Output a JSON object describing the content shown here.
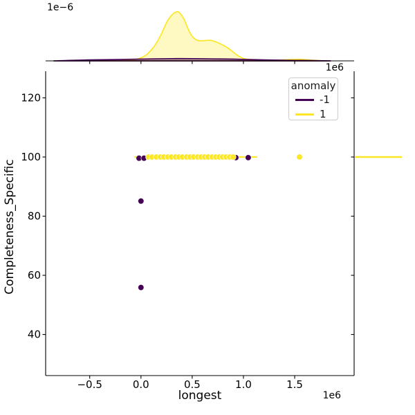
{
  "figure": {
    "top_marginal": {
      "y_offset_label": "1e−6",
      "x_offset_label": "1e6"
    },
    "legend": {
      "title": "anomaly",
      "entries": [
        {
          "label": "-1",
          "color": "#440154"
        },
        {
          "label": "1",
          "color": "#FDE725"
        }
      ]
    },
    "main": {
      "xlabel": "longest",
      "ylabel": "Completeness_Specific",
      "x_offset_label": "1e6"
    }
  },
  "chart_data": {
    "type": "scatter",
    "title": "",
    "xlabel": "longest",
    "ylabel": "Completeness_Specific",
    "x_unit_multiplier": 1000000,
    "x_offset_label": "1e6",
    "top_density_offset_label": "1e−6",
    "xlim": [
      -0.93,
      2.08
    ],
    "ylim": [
      26.1,
      129.0
    ],
    "grid": false,
    "legend_title": "anomaly",
    "legend_position": "upper right",
    "x_ticks": [
      {
        "v": -0.5,
        "label": "−0.5"
      },
      {
        "v": 0.0,
        "label": "0.0"
      },
      {
        "v": 0.5,
        "label": "0.5"
      },
      {
        "v": 1.0,
        "label": "1.0"
      },
      {
        "v": 1.5,
        "label": "1.5"
      }
    ],
    "y_ticks": [
      {
        "v": 40,
        "label": "40"
      },
      {
        "v": 60,
        "label": "60"
      },
      {
        "v": 80,
        "label": "80"
      },
      {
        "v": 100,
        "label": "100"
      },
      {
        "v": 120,
        "label": "120"
      }
    ],
    "series": [
      {
        "name": "-1",
        "color": "#440154",
        "points": [
          [
            -0.019,
            99.6
          ],
          [
            0.03,
            99.6
          ],
          [
            0.5,
            100
          ],
          [
            0.605,
            100
          ],
          [
            0.815,
            100
          ],
          [
            0.885,
            100
          ],
          [
            0.926,
            99.8
          ],
          [
            1.047,
            99.8
          ],
          [
            0.0,
            85.1
          ],
          [
            0.0,
            55.9
          ]
        ]
      },
      {
        "name": "1",
        "color": "#FDE725",
        "line_y": 100,
        "line_x_range": [
          -0.063,
          1.135
        ],
        "points": [
          [
            0.074,
            100
          ],
          [
            0.108,
            100
          ],
          [
            0.149,
            100
          ],
          [
            0.189,
            100
          ],
          [
            0.223,
            100
          ],
          [
            0.264,
            100
          ],
          [
            0.297,
            100
          ],
          [
            0.338,
            100
          ],
          [
            0.372,
            100
          ],
          [
            0.405,
            100
          ],
          [
            0.446,
            100
          ],
          [
            0.48,
            100
          ],
          [
            0.514,
            100
          ],
          [
            0.554,
            100
          ],
          [
            0.588,
            100
          ],
          [
            0.622,
            100
          ],
          [
            0.655,
            100
          ],
          [
            0.696,
            100
          ],
          [
            0.73,
            100
          ],
          [
            0.764,
            100
          ],
          [
            0.797,
            100
          ],
          [
            0.831,
            100
          ],
          [
            0.865,
            100
          ],
          [
            0.899,
            100
          ],
          [
            1.547,
            100
          ]
        ]
      }
    ],
    "top_kde": {
      "note": "marginal density of longest, heights relative to peak",
      "series": [
        {
          "name": "1",
          "color": "#FDE725",
          "profile": [
            [
              -0.4,
              0
            ],
            [
              -0.15,
              0.01
            ],
            [
              -0.05,
              0.03
            ],
            [
              0.0,
              0.06
            ],
            [
              0.05,
              0.12
            ],
            [
              0.1,
              0.22
            ],
            [
              0.15,
              0.36
            ],
            [
              0.2,
              0.55
            ],
            [
              0.25,
              0.78
            ],
            [
              0.3,
              0.93
            ],
            [
              0.35,
              1.0
            ],
            [
              0.38,
              0.97
            ],
            [
              0.42,
              0.85
            ],
            [
              0.46,
              0.65
            ],
            [
              0.5,
              0.5
            ],
            [
              0.55,
              0.42
            ],
            [
              0.6,
              0.41
            ],
            [
              0.65,
              0.42
            ],
            [
              0.7,
              0.41
            ],
            [
              0.75,
              0.37
            ],
            [
              0.8,
              0.32
            ],
            [
              0.85,
              0.26
            ],
            [
              0.9,
              0.18
            ],
            [
              0.95,
              0.1
            ],
            [
              1.0,
              0.05
            ],
            [
              1.05,
              0.03
            ],
            [
              1.1,
              0.02
            ],
            [
              1.2,
              0.015
            ],
            [
              1.3,
              0.015
            ],
            [
              1.4,
              0.02
            ],
            [
              1.5,
              0.03
            ],
            [
              1.55,
              0.033
            ],
            [
              1.6,
              0.025
            ],
            [
              1.7,
              0.01
            ],
            [
              1.8,
              0
            ]
          ]
        },
        {
          "name": "-1",
          "color": "#440154",
          "profile": [
            [
              -0.85,
              0
            ],
            [
              -0.7,
              0.01
            ],
            [
              -0.5,
              0.02
            ],
            [
              -0.3,
              0.026
            ],
            [
              -0.1,
              0.032
            ],
            [
              0.1,
              0.04
            ],
            [
              0.3,
              0.045
            ],
            [
              0.5,
              0.045
            ],
            [
              0.7,
              0.04
            ],
            [
              0.9,
              0.035
            ],
            [
              1.1,
              0.025
            ],
            [
              1.3,
              0.016
            ],
            [
              1.5,
              0.01
            ],
            [
              1.7,
              0.005
            ],
            [
              1.85,
              0
            ]
          ]
        }
      ]
    },
    "right_kde": {
      "series": [
        {
          "name": "1",
          "color": "#FDE725",
          "spike_y": 100
        }
      ]
    }
  }
}
